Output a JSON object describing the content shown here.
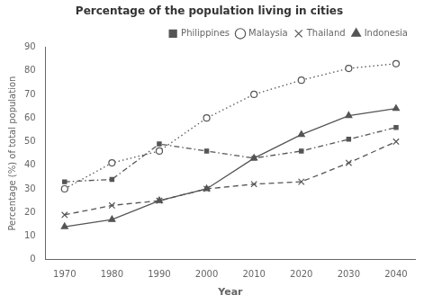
{
  "chart_data": {
    "type": "line",
    "title": "Percentage of the population living in cities",
    "xlabel": "Year",
    "ylabel": "Percentage (%) of total population",
    "x": [
      1970,
      1980,
      1990,
      2000,
      2010,
      2020,
      2030,
      2040
    ],
    "series": [
      {
        "name": "Philippines",
        "color": "#555555",
        "marker": "square",
        "line_style": "dashdot",
        "values": [
          33,
          34,
          49,
          46,
          43,
          46,
          51,
          56
        ]
      },
      {
        "name": "Malaysia",
        "color": "#555555",
        "marker": "open_circle",
        "line_style": "dotted",
        "values": [
          30,
          41,
          46,
          60,
          70,
          76,
          81,
          83
        ]
      },
      {
        "name": "Thailand",
        "color": "#555555",
        "marker": "x",
        "line_style": "dashed",
        "values": [
          19,
          23,
          25,
          30,
          32,
          33,
          41,
          50
        ]
      },
      {
        "name": "Indonesia",
        "color": "#555555",
        "marker": "triangle",
        "line_style": "solid",
        "values": [
          14,
          17,
          25,
          30,
          43,
          53,
          61,
          64
        ]
      }
    ],
    "xlim": [
      1966,
      2044
    ],
    "xticks": [
      1970,
      1980,
      1990,
      2000,
      2010,
      2020,
      2030,
      2040
    ],
    "ylim": [
      0,
      90
    ],
    "yticks": [
      0,
      10,
      20,
      30,
      40,
      50,
      60,
      70,
      80,
      90
    ],
    "grid": false,
    "legend": "upper right"
  }
}
